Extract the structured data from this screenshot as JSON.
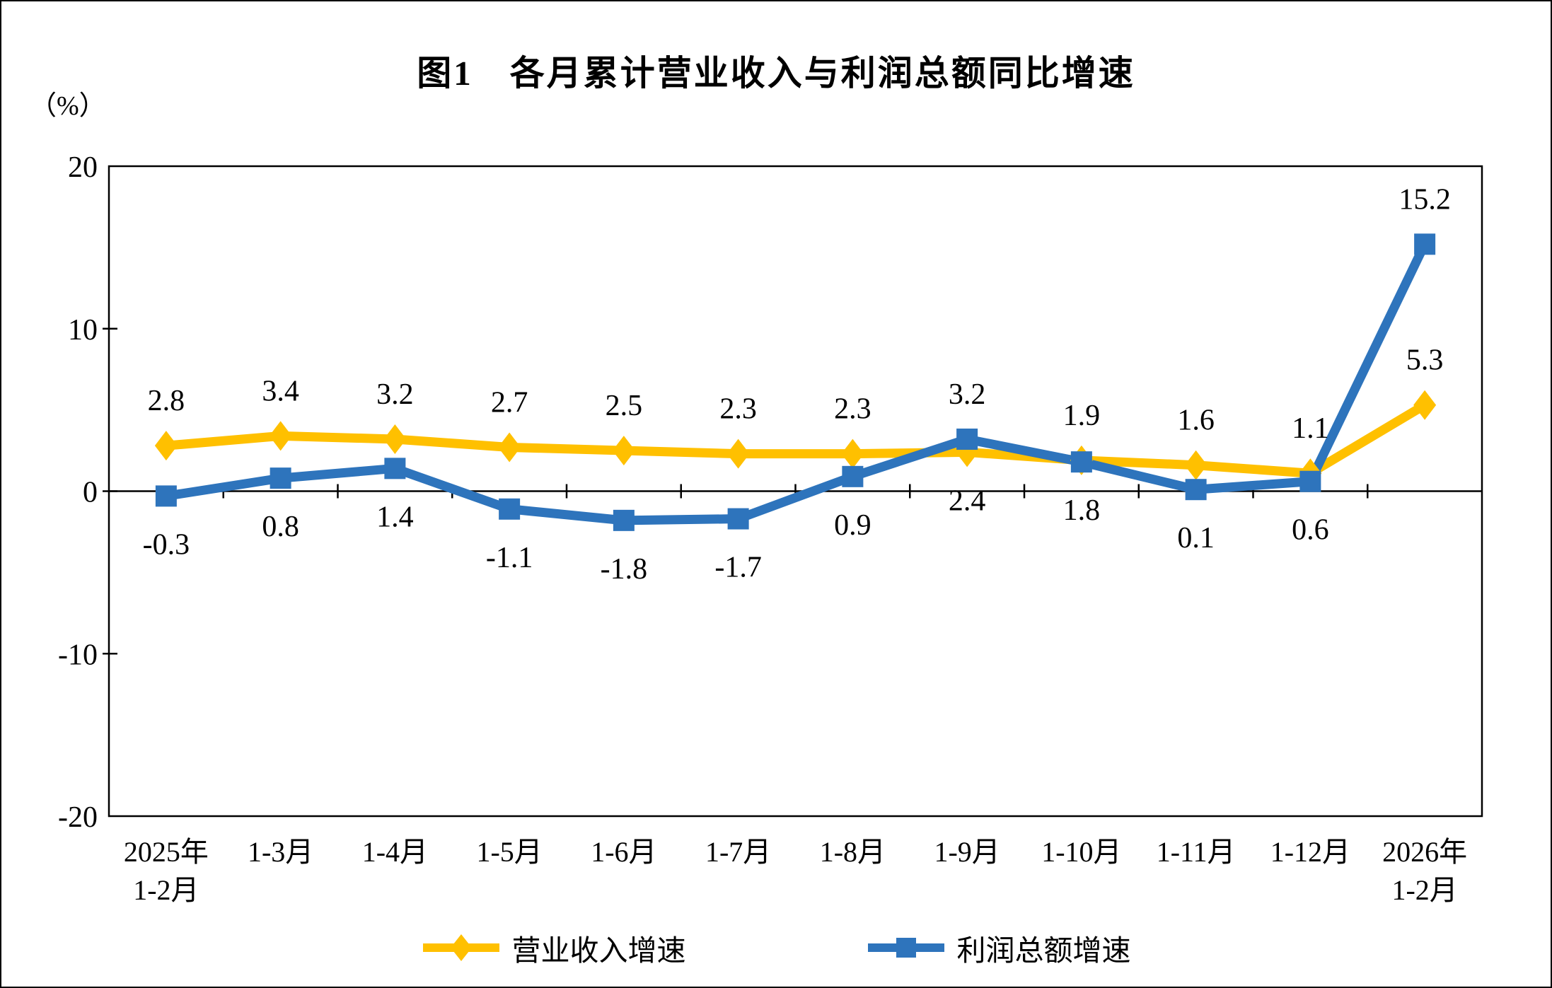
{
  "figure": {
    "title": "图1　各月累计营业收入与利润总额同比增速",
    "unit_label": "（%）"
  },
  "chart_data": {
    "type": "line",
    "title": "图1　各月累计营业收入与利润总额同比增速",
    "unit_label": "（%）",
    "categories": [
      [
        "2025年",
        "1-2月"
      ],
      [
        "1-3月"
      ],
      [
        "1-4月"
      ],
      [
        "1-5月"
      ],
      [
        "1-6月"
      ],
      [
        "1-7月"
      ],
      [
        "1-8月"
      ],
      [
        "1-9月"
      ],
      [
        "1-10月"
      ],
      [
        "1-11月"
      ],
      [
        "1-12月"
      ],
      [
        "2026年",
        "1-2月"
      ]
    ],
    "series": [
      {
        "id": "revenue",
        "name": "营业收入增速",
        "color": "#FFC000",
        "marker": "diamond",
        "values": [
          2.8,
          3.4,
          3.2,
          2.7,
          2.5,
          2.3,
          2.3,
          2.4,
          1.9,
          1.6,
          1.1,
          5.3
        ],
        "label_side": [
          "above",
          "above",
          "above",
          "above",
          "above",
          "above",
          "above",
          "below",
          "above",
          "above",
          "above",
          "above"
        ]
      },
      {
        "id": "profit",
        "name": "利润总额增速",
        "color": "#2E74BC",
        "marker": "square",
        "values": [
          -0.3,
          0.8,
          1.4,
          -1.1,
          -1.8,
          -1.7,
          0.9,
          3.2,
          1.8,
          0.1,
          0.6,
          15.2
        ],
        "label_side": [
          "below",
          "below",
          "below",
          "below",
          "below",
          "below",
          "below",
          "above",
          "below",
          "below",
          "below",
          "above"
        ]
      }
    ],
    "y_axis": {
      "min": -20,
      "max": 20,
      "ticks": [
        20,
        10,
        0,
        -10,
        -20
      ]
    },
    "grid": false,
    "legend_position": "bottom",
    "axis_color": "#000000"
  }
}
